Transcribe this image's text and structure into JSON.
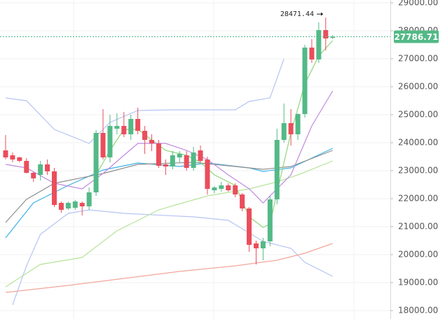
{
  "chart_data": {
    "type": "candlestick",
    "up_color": "#53b987",
    "down_color": "#eb4d5c",
    "open": [
      23725,
      23550,
      23475,
      23350,
      22925,
      22850,
      23225,
      22975,
      21850,
      21650,
      21675,
      21850,
      21725,
      22225,
      24350,
      23475,
      24500,
      24600,
      24300,
      24850,
      24425,
      24100,
      23975,
      23225,
      23150,
      23475,
      23550,
      23100,
      23725,
      23400,
      22300,
      22350,
      22475,
      22475,
      22150,
      21650,
      20400,
      20225,
      20475,
      21975,
      24100,
      24700,
      24300,
      25025,
      27400,
      26975,
      28025,
      27750
    ],
    "high": [
      24275,
      23650,
      23500,
      23450,
      22950,
      23350,
      23400,
      23100,
      21900,
      21900,
      21950,
      21900,
      22400,
      24450,
      25200,
      25000,
      25050,
      25100,
      25000,
      25250,
      24600,
      24300,
      24100,
      23400,
      23700,
      23700,
      23700,
      23850,
      23900,
      23500,
      22450,
      22600,
      22550,
      22550,
      22200,
      21700,
      20500,
      20600,
      22100,
      24500,
      25400,
      25200,
      25050,
      27500,
      27700,
      28300,
      28471.44,
      27850
    ],
    "low": [
      23400,
      23300,
      23300,
      22900,
      22600,
      22650,
      22850,
      21700,
      21500,
      21600,
      21600,
      21400,
      21600,
      22100,
      23400,
      23300,
      24300,
      24200,
      24100,
      24300,
      23600,
      23700,
      23100,
      22850,
      23050,
      23300,
      23000,
      23000,
      23300,
      22150,
      22200,
      22250,
      22250,
      22050,
      21550,
      20100,
      19650,
      19800,
      20300,
      21800,
      24000,
      23900,
      24100,
      24900,
      26850,
      26850,
      27300,
      27700
    ],
    "close": [
      23475,
      23400,
      23350,
      22925,
      22725,
      23225,
      22975,
      21775,
      21600,
      21850,
      21900,
      21725,
      22225,
      24350,
      23475,
      24600,
      24600,
      24300,
      24850,
      24425,
      24100,
      23975,
      23175,
      23150,
      23550,
      23600,
      23100,
      23650,
      23350,
      22350,
      22400,
      22475,
      22300,
      22150,
      21650,
      20350,
      20225,
      20475,
      21975,
      24100,
      24700,
      24300,
      25025,
      27400,
      26975,
      28025,
      27725,
      27786.71
    ],
    "overlays": [
      {
        "color": "#b7c4f4",
        "x": [
          0,
          3,
          7,
          12,
          15,
          19,
          24,
          33,
          35,
          38,
          40
        ],
        "values": [
          25600,
          25500,
          24475,
          23975,
          24725,
          25150,
          25175,
          25175,
          25475,
          25600,
          27000
        ]
      },
      {
        "color": "#b7c4f4",
        "x": [
          1,
          3,
          5,
          9,
          12,
          17,
          27,
          32,
          37,
          41,
          43,
          47
        ],
        "values": [
          18200,
          19600,
          20725,
          21475,
          21600,
          21475,
          21350,
          21225,
          20475,
          20225,
          19725,
          19225
        ]
      },
      {
        "color": "#3fb2e6",
        "x": [
          0,
          4,
          9,
          14,
          19,
          25,
          29,
          35,
          37,
          41,
          47
        ],
        "values": [
          20600,
          21850,
          22475,
          23025,
          23275,
          23150,
          23275,
          23100,
          22975,
          23100,
          23800
        ]
      },
      {
        "color": "#8f8f8f",
        "x": [
          0,
          3,
          7,
          14,
          19,
          27,
          32,
          37,
          41,
          47
        ],
        "values": [
          21150,
          21975,
          22550,
          22900,
          23225,
          23300,
          23175,
          23050,
          23150,
          23725
        ]
      },
      {
        "color": "#b5e39a",
        "x": [
          0,
          5,
          11,
          16,
          22,
          29,
          35,
          39,
          42,
          47
        ],
        "values": [
          18850,
          19650,
          19900,
          20850,
          21600,
          22100,
          22350,
          22600,
          22850,
          23350
        ]
      },
      {
        "color": "#f2a69a",
        "x": [
          0,
          9,
          17,
          25,
          33,
          39,
          43,
          47
        ],
        "values": [
          18650,
          18900,
          19150,
          19400,
          19600,
          19800,
          20050,
          20400
        ]
      },
      {
        "color": "#8fd67a",
        "x": [
          13,
          15,
          17,
          19,
          21,
          23,
          26,
          28,
          30,
          33,
          35,
          37,
          38,
          39,
          41,
          43,
          45,
          47
        ],
        "values": [
          22850,
          23725,
          24475,
          24475,
          24100,
          23725,
          23550,
          23300,
          22850,
          22475,
          21350,
          20975,
          21100,
          22225,
          24350,
          26100,
          27100,
          27650
        ]
      },
      {
        "color": "#c08be0",
        "x": [
          0,
          3,
          7,
          11,
          14,
          17,
          19,
          23,
          26,
          29,
          32,
          35,
          37,
          41,
          44,
          47
        ],
        "values": [
          23225,
          23100,
          22550,
          22350,
          22900,
          23550,
          23975,
          23975,
          23725,
          23400,
          22850,
          22350,
          21850,
          22850,
          24600,
          25850
        ]
      }
    ],
    "ylim": [
      17700,
      29100
    ],
    "yticks": [
      {
        "value": 18000,
        "label": "18000.00"
      },
      {
        "value": 19000,
        "label": "19000.00"
      },
      {
        "value": 20000,
        "label": "20000.00"
      },
      {
        "value": 21000,
        "label": "21000.00"
      },
      {
        "value": 22000,
        "label": "22000.00"
      },
      {
        "value": 23000,
        "label": "23000.00"
      },
      {
        "value": 24000,
        "label": "24000.00"
      },
      {
        "value": 25000,
        "label": "25000.00"
      },
      {
        "value": 26000,
        "label": "26000.00"
      },
      {
        "value": 27000,
        "label": "27000.00"
      },
      {
        "value": 28000,
        "label": "28000.00"
      },
      {
        "value": 29000,
        "label": "29000.00"
      }
    ],
    "last_price": {
      "value": 27786.71,
      "label": "27786.71",
      "color": "#53b987"
    },
    "high_annotation": {
      "value": 28471.44,
      "label": "28471.44"
    },
    "grid": true
  }
}
